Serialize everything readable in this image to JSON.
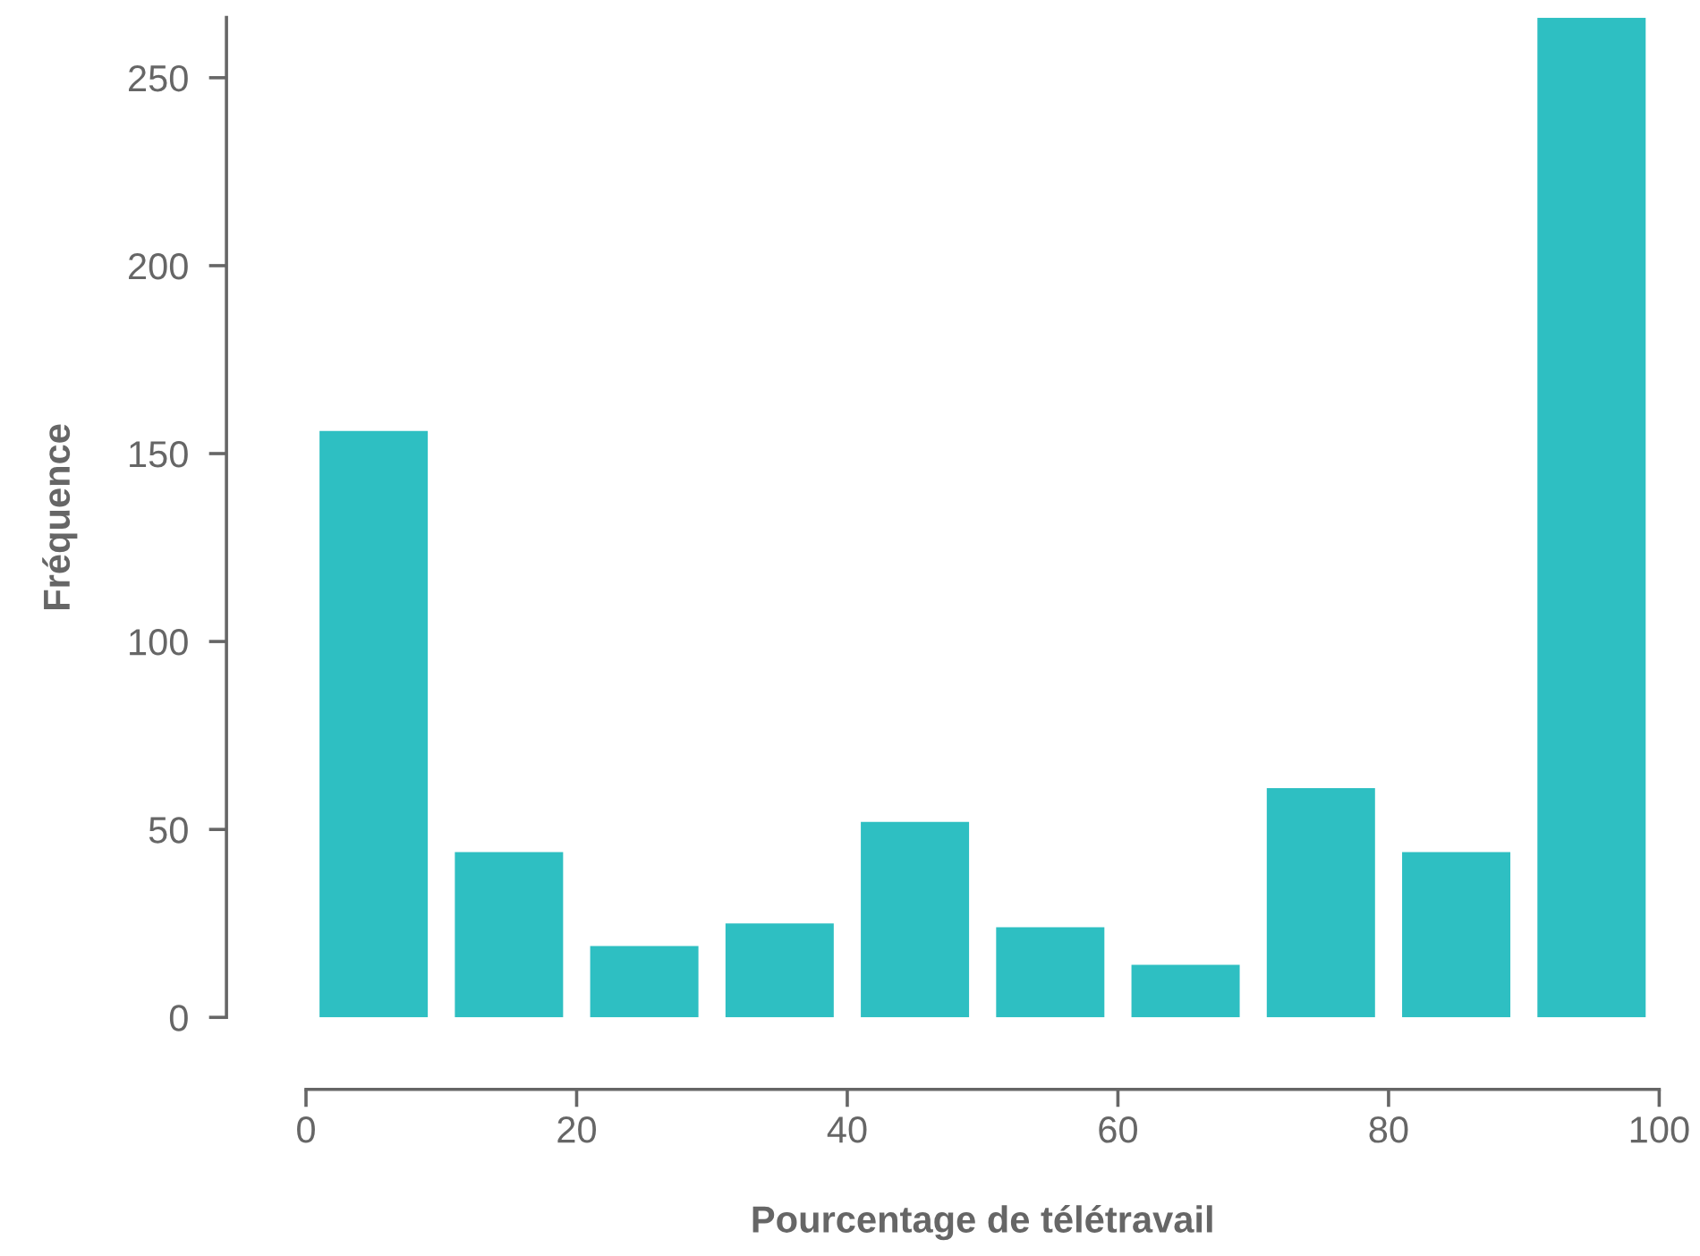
{
  "chart_data": {
    "type": "histogram",
    "xlabel": "Pourcentage de télétravail",
    "ylabel": "Fréquence",
    "bins": [
      0,
      10,
      20,
      30,
      40,
      50,
      60,
      70,
      80,
      90,
      100
    ],
    "values": [
      156,
      44,
      19,
      25,
      52,
      24,
      14,
      61,
      44,
      266
    ],
    "color": "#2ebfc2",
    "xlim": [
      0,
      100
    ],
    "xticks": [
      0,
      20,
      40,
      60,
      80,
      100
    ],
    "ylim": [
      0,
      266
    ],
    "yticks": [
      0,
      50,
      100,
      150,
      200,
      250
    ],
    "grid": false
  }
}
